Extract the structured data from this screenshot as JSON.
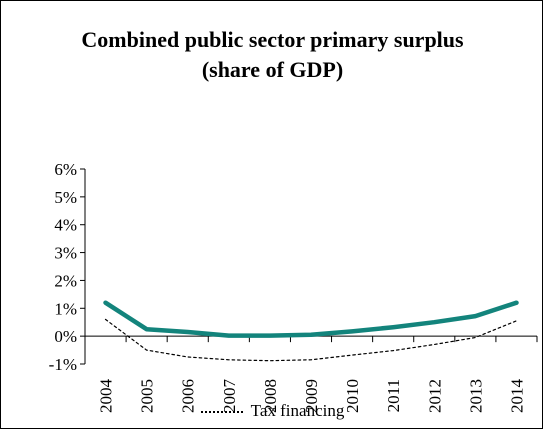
{
  "chart_data": {
    "type": "line",
    "title": [
      "Combined public sector primary surplus",
      "(share of GDP)"
    ],
    "xlabel": "",
    "ylabel": "",
    "categories": [
      "2004",
      "2005",
      "2006",
      "2007",
      "2008",
      "2009",
      "2010",
      "2011",
      "2012",
      "2013",
      "2014"
    ],
    "ylim": [
      -1,
      6
    ],
    "yticks": [
      -1,
      0,
      1,
      2,
      3,
      4,
      5,
      6
    ],
    "ytick_labels": [
      "-1%",
      "0%",
      "1%",
      "2%",
      "3%",
      "4%",
      "5%",
      "6%"
    ],
    "grid": false,
    "legend_position": "bottom",
    "series": [
      {
        "name": "",
        "style": "solid",
        "color": "#13847C",
        "values": [
          1.2,
          0.25,
          0.15,
          0.02,
          0.02,
          0.05,
          0.17,
          0.32,
          0.5,
          0.72,
          1.2
        ]
      },
      {
        "name": "Tax financing",
        "style": "dotted",
        "color": "#000000",
        "values": [
          0.6,
          -0.5,
          -0.75,
          -0.85,
          -0.88,
          -0.85,
          -0.68,
          -0.52,
          -0.3,
          -0.05,
          0.55
        ]
      }
    ]
  },
  "legend": {
    "label": "Tax financing"
  }
}
